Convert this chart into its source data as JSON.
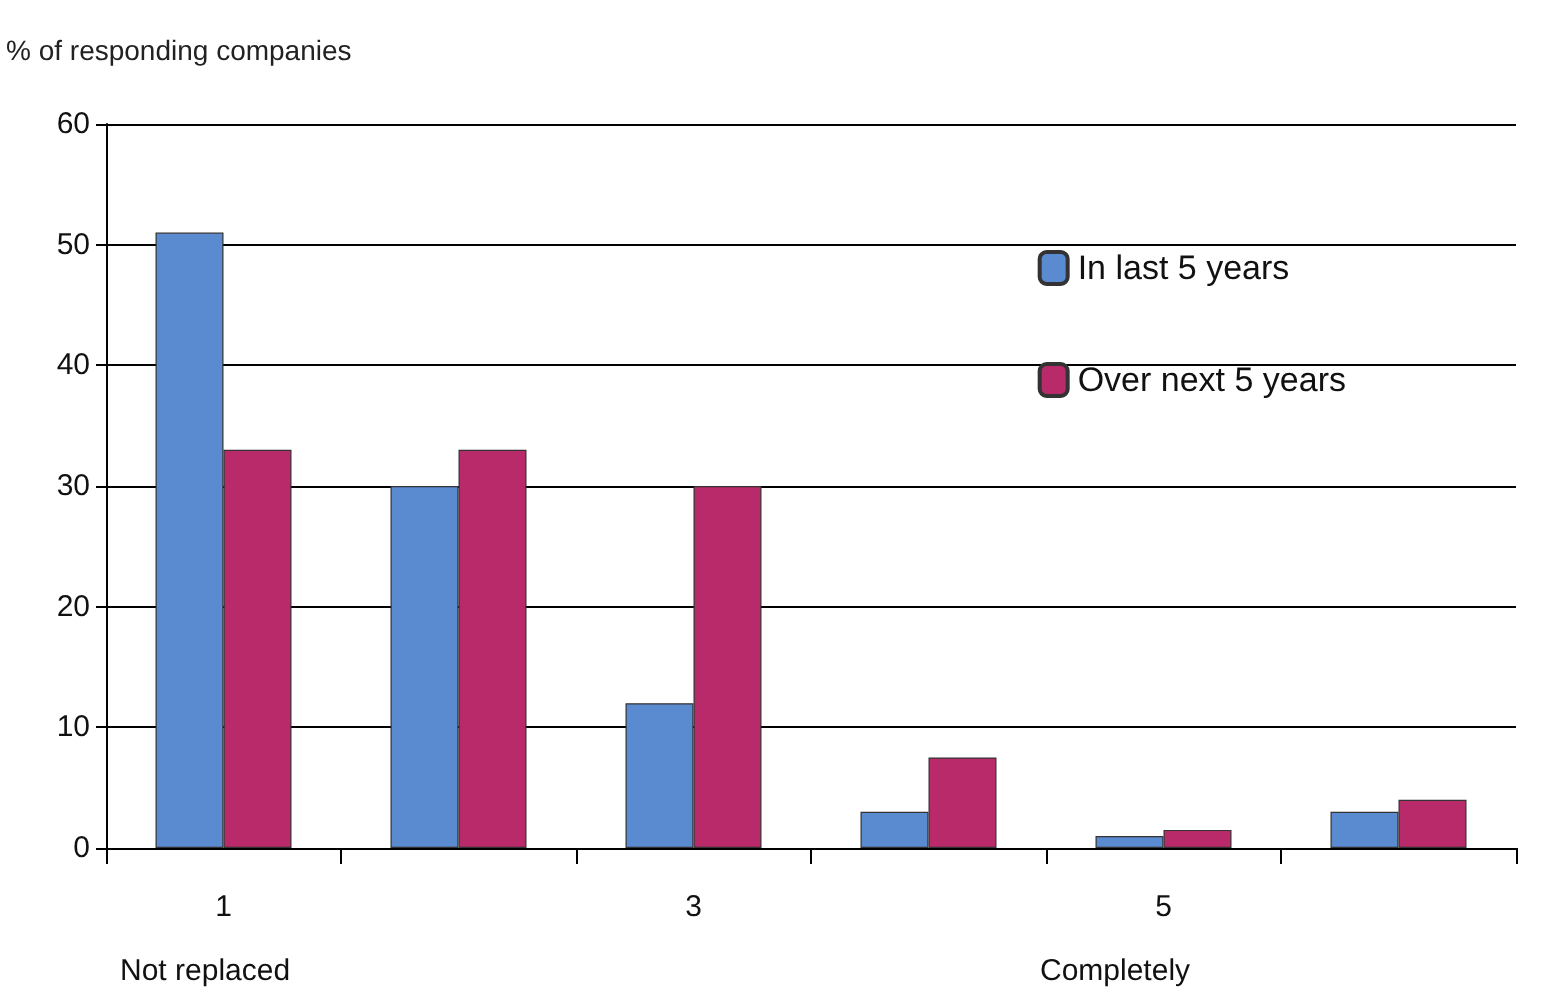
{
  "chart_data": {
    "type": "bar",
    "ylabel": "% of responding companies",
    "categories": [
      "1",
      null,
      "3",
      null,
      "5",
      null
    ],
    "series": [
      {
        "name": "In last 5 years",
        "color": "#5a8ad0",
        "values": [
          51,
          30,
          12,
          3,
          1,
          3
        ]
      },
      {
        "name": "Over next 5 years",
        "color": "#b82a6a",
        "values": [
          33,
          33,
          30,
          7.5,
          1.5,
          4
        ]
      }
    ],
    "ylim": [
      0,
      60
    ],
    "yticks": [
      0,
      10,
      20,
      30,
      40,
      50,
      60
    ],
    "grid": "y",
    "legend": "top right",
    "annotations": [
      "Not replaced",
      "Completely"
    ]
  }
}
